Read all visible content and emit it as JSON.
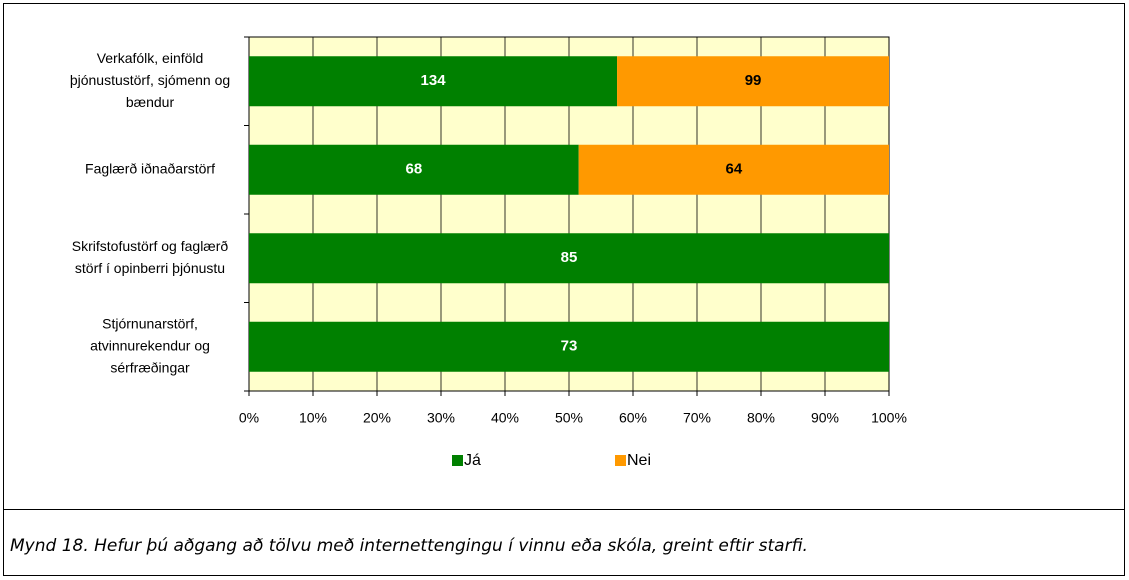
{
  "chart_data": {
    "type": "bar",
    "orientation": "horizontal",
    "stacking": "percent",
    "categories": [
      [
        "Verkafólk, einföld",
        "þjónustustörf, sjómenn og",
        "bændur"
      ],
      [
        "Faglærð iðnaðarstörf"
      ],
      [
        "Skrifstofustörf og faglærð",
        "störf í opinberri þjónustu"
      ],
      [
        "Stjórnunarstörf,",
        "atvinnurekendur og",
        "sérfræðingar"
      ]
    ],
    "series": [
      {
        "name": "Já",
        "color": "#008000",
        "label_color": "#ffffff",
        "values": [
          134,
          68,
          85,
          73
        ]
      },
      {
        "name": "Nei",
        "color": "#ff9900",
        "label_color": "#000000",
        "values": [
          99,
          64,
          null,
          null
        ]
      }
    ],
    "xlim": [
      0,
      100
    ],
    "xticks": [
      {
        "value": 0,
        "label": "0%"
      },
      {
        "value": 10,
        "label": "10%"
      },
      {
        "value": 20,
        "label": "20%"
      },
      {
        "value": 30,
        "label": "30%"
      },
      {
        "value": 40,
        "label": "40%"
      },
      {
        "value": 50,
        "label": "50%"
      },
      {
        "value": 60,
        "label": "60%"
      },
      {
        "value": 70,
        "label": "70%"
      },
      {
        "value": 80,
        "label": "80%"
      },
      {
        "value": 90,
        "label": "90%"
      },
      {
        "value": 100,
        "label": "100%"
      }
    ],
    "grid": true,
    "plot_background": "#ffffcc",
    "legend": "bottom",
    "caption": "Mynd 18.  Hefur þú aðgang að tölvu með internettengingu í vinnu eða skóla, greint eftir starfi."
  }
}
